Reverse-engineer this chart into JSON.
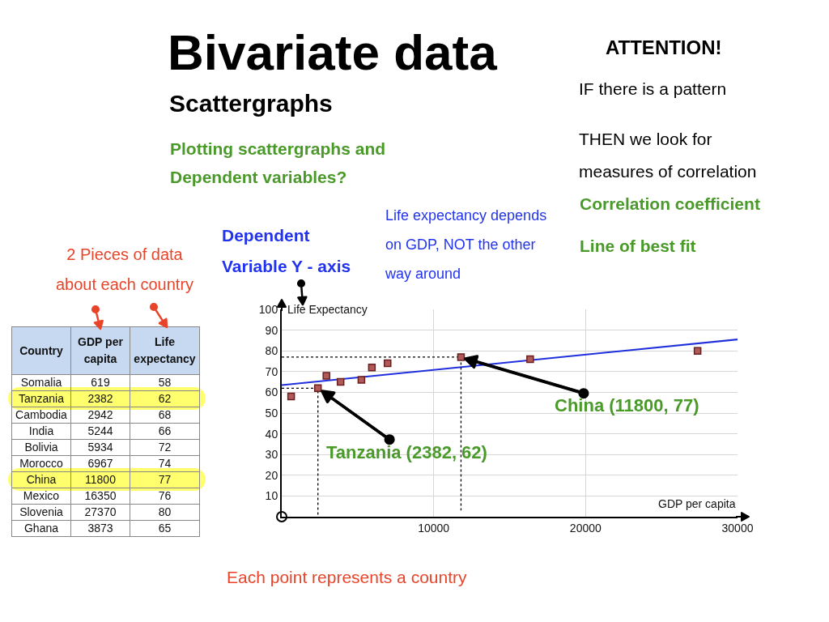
{
  "chart_data": [
    {
      "type": "scatter",
      "title": "Bivariate data",
      "subtitle": "Scattergraphs",
      "xlabel": "GDP per capita",
      "ylabel": "Life Expectancy",
      "xlim": [
        0,
        30000
      ],
      "xticks": [
        10000,
        20000,
        30000
      ],
      "ylim": [
        0,
        100
      ],
      "yticks": [
        10,
        20,
        30,
        40,
        50,
        60,
        70,
        80,
        90,
        100
      ],
      "grid": true,
      "marker": "square",
      "series": [
        {
          "type": "scatter",
          "color": "#b05a5a",
          "x": [
            619,
            2382,
            2942,
            5244,
            5934,
            6967,
            11800,
            16350,
            27370,
            3873
          ],
          "values": [
            58,
            62,
            68,
            66,
            72,
            74,
            77,
            76,
            80,
            65
          ]
        },
        {
          "type": "line",
          "color": "#1f2fdc",
          "marker": "none",
          "x": [
            0,
            30000
          ],
          "values": [
            63.5,
            85.5
          ]
        },
        {
          "type": "line",
          "color": "#000000",
          "marker": "none",
          "line_style": "dotted",
          "x": [
            0,
            2382,
            2382
          ],
          "values": [
            62,
            62,
            0
          ]
        },
        {
          "type": "line",
          "color": "#000000",
          "marker": "none",
          "line_style": "dotted",
          "x": [
            0,
            11800,
            11800
          ],
          "values": [
            77,
            77,
            3
          ]
        }
      ],
      "annotations": [
        "Plotting scattergraphs and\nDependent variables?",
        "ATTENTION!",
        "IF there is a pattern",
        "THEN we look for\nmeasures of correlation",
        "Correlation coefficient",
        "Line of best fit",
        "Dependent\nVariable Y - axis",
        "Life expectancy depends\non GDP, NOT the other\nway around",
        {
          "text": "Tanzania (2382, 62)",
          "x": 2382,
          "y": 62
        },
        {
          "text": "China (11800, 77)",
          "x": 11800,
          "y": 77
        },
        "Each point represents a country"
      ]
    },
    {
      "type": "other",
      "title": "2 Pieces of data\nabout each country",
      "xlabel": "Country",
      "categories": [
        "Somalia",
        "Tanzania",
        "Cambodia",
        "India",
        "Bolivia",
        "Morocco",
        "China",
        "Mexico",
        "Slovenia",
        "Ghana"
      ],
      "series": [
        {
          "name": "GDP per capita",
          "values": [
            619,
            2382,
            2942,
            5244,
            5934,
            6967,
            11800,
            16350,
            27370,
            3873
          ]
        },
        {
          "name": "Life expectancy",
          "values": [
            58,
            62,
            68,
            66,
            72,
            74,
            77,
            76,
            80,
            65
          ]
        }
      ],
      "colors": [
        null,
        "#ffff55",
        null,
        null,
        null,
        null,
        "#ffff55",
        null,
        null,
        null
      ],
      "data_labels": true
    }
  ]
}
